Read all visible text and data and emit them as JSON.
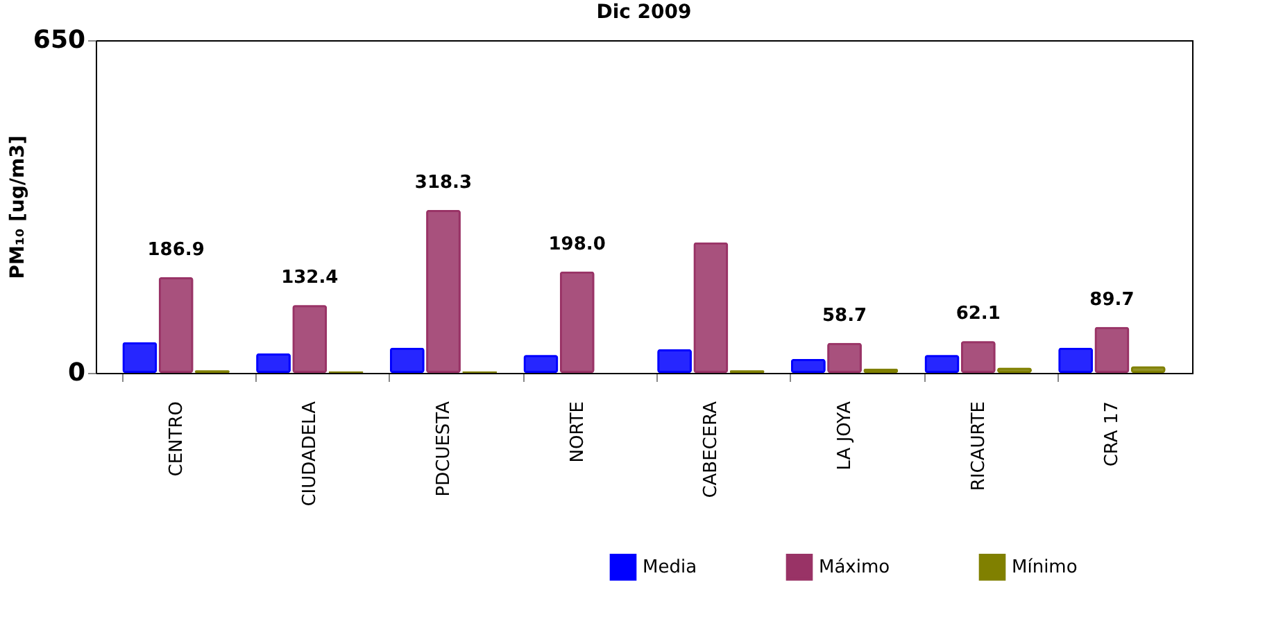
{
  "chart_data": {
    "type": "bar",
    "title": "Dic 2009",
    "ylabel": "PM₁₀ [ug/m3]",
    "categories": [
      "CENTRO",
      "CIUDADELA",
      "PDCUESTA",
      "NORTE",
      "CABECERA",
      "LA JOYA",
      "RICAURTE",
      "CRA 17"
    ],
    "series": [
      {
        "name": "Media",
        "color": "#0000ff",
        "values": [
          60,
          38,
          49,
          35,
          46,
          27,
          35,
          49
        ]
      },
      {
        "name": "Máximo",
        "color": "#993366",
        "values": [
          186.9,
          132.4,
          318.3,
          198.0,
          255,
          58.7,
          62.1,
          89.7
        ],
        "value_labels": [
          "186.9",
          "132.4",
          "318.3",
          "198.0",
          null,
          "58.7",
          "62.1",
          "89.7"
        ]
      },
      {
        "name": "Mínimo",
        "color": "#808000",
        "values": [
          5,
          3,
          3,
          null,
          5,
          8,
          10,
          13
        ]
      }
    ],
    "ylim": [
      0,
      650
    ],
    "yticks": [
      0,
      650
    ],
    "grid": false,
    "legend": "bottom right"
  }
}
